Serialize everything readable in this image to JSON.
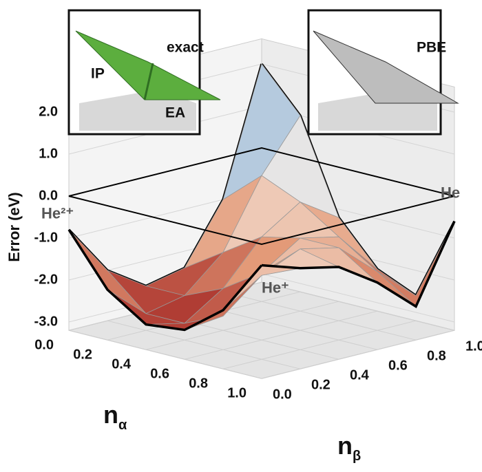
{
  "chart_data": {
    "type": "surface",
    "zlabel": "Error (eV)",
    "xlabel": "n",
    "xlabel_sub": "α",
    "ylabel": "n",
    "ylabel_sub": "β",
    "x": [
      0,
      0.2,
      0.4,
      0.6,
      0.8,
      1
    ],
    "y": [
      0,
      0.2,
      0.4,
      0.6,
      0.8,
      1
    ],
    "z": [
      [
        -0.8,
        -2.0,
        -2.6,
        -2.4,
        -1.0,
        2.0
      ],
      [
        -2.0,
        -2.8,
        -2.6,
        -1.8,
        -0.2,
        1.0
      ],
      [
        -2.6,
        -2.8,
        -2.2,
        -1.2,
        -0.6,
        -1.2
      ],
      [
        -2.5,
        -2.4,
        -1.6,
        -1.0,
        -1.2,
        -2.2
      ],
      [
        -1.8,
        -1.2,
        -0.8,
        -1.0,
        -1.8,
        -2.6
      ],
      [
        -0.5,
        -0.8,
        -1.0,
        -1.6,
        -2.4,
        -0.6
      ]
    ],
    "xlim": [
      0,
      1
    ],
    "ylim": [
      0,
      1
    ],
    "zlim": [
      -3.2,
      2.6
    ],
    "xticks": [
      {
        "value": 0,
        "label": "0.0"
      },
      0.2,
      0.4,
      0.6,
      0.8,
      {
        "value": 1,
        "label": "1.0"
      }
    ],
    "yticks": [
      {
        "value": 0,
        "label": "0.0"
      },
      0.2,
      0.4,
      0.6,
      0.8,
      {
        "value": 1,
        "label": "1.0"
      }
    ],
    "zticks": [
      {
        "value": 2,
        "label": "2.0"
      },
      {
        "value": 1,
        "label": "1.0"
      },
      {
        "value": 0,
        "label": "0.0"
      },
      {
        "value": -1,
        "label": "-1.0"
      },
      {
        "value": -2,
        "label": "-2.0"
      },
      {
        "value": -3,
        "label": "-3.0"
      }
    ],
    "grid": true,
    "colorscale": [
      [
        -3,
        "#9e1b1b"
      ],
      [
        -1.5,
        "#e39a78"
      ],
      [
        -0.5,
        "#f7efe8"
      ],
      [
        1,
        "#8fb5d8"
      ],
      [
        2.3,
        "#1f4f99"
      ]
    ],
    "annotations": [
      "He²⁺",
      "He⁺",
      "He"
    ],
    "insets": [
      {
        "labels": [
          "IP",
          "exact",
          "EA"
        ]
      },
      {
        "labels": [
          "PBE"
        ]
      }
    ]
  }
}
